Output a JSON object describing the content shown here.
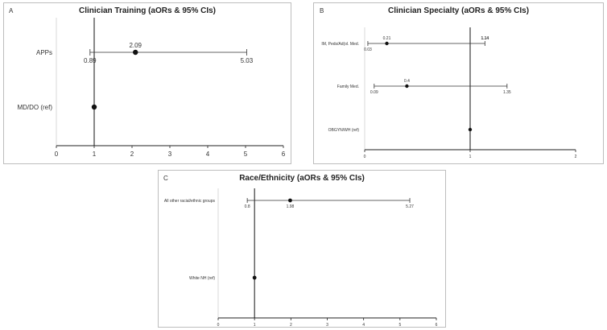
{
  "chart_data": [
    {
      "panel": "A",
      "type": "scatter",
      "title": "Clinician Training (aORs & 95% CIs)",
      "xlim": [
        0,
        6
      ],
      "xticks": [
        "0",
        "1",
        "2",
        "3",
        "4",
        "5",
        "6"
      ],
      "reference_line": 1,
      "categories": [
        "APPs",
        "MD/DO (ref)"
      ],
      "series": [
        {
          "category": "APPs",
          "aor": 2.09,
          "ci_low": 0.89,
          "ci_high": 5.03,
          "aor_label": "2.09",
          "low_label": "0.89",
          "high_label": "5.03"
        },
        {
          "category": "MD/DO (ref)",
          "aor": 1
        }
      ]
    },
    {
      "panel": "B",
      "type": "scatter",
      "title": "Clinician Specialty (aORs & 95% CIs)",
      "xlim": [
        0,
        2
      ],
      "xticks": [
        "0",
        "1",
        "2"
      ],
      "reference_line": 1,
      "categories": [
        "IM, Peds/Ad(ol. Med.",
        "Family Med.",
        "OBGYN/WH (ref)"
      ],
      "series": [
        {
          "category": "IM, Peds/Ad(ol. Med.",
          "aor": 0.21,
          "ci_low": 0.03,
          "ci_high": 1.14,
          "aor_label": "0.21",
          "low_label": "0.03",
          "high_label": "1.14"
        },
        {
          "category": "Family Med.",
          "aor": 0.4,
          "ci_low": 0.09,
          "ci_high": 1.35,
          "aor_label": "0.4",
          "low_label": "0.09",
          "high_label": "1.35"
        },
        {
          "category": "OBGYN/WH (ref)",
          "aor": 1
        }
      ]
    },
    {
      "panel": "C",
      "type": "scatter",
      "title": "Race/Ethnicity (aORs & 95% CIs)",
      "xlim": [
        0,
        6
      ],
      "xticks": [
        "0",
        "1",
        "2",
        "3",
        "4",
        "5",
        "6"
      ],
      "reference_line": 1,
      "categories": [
        "All other racial/ethnic groups",
        "White NH (ref)"
      ],
      "series": [
        {
          "category": "All other racial/ethnic groups",
          "aor": 1.98,
          "ci_low": 0.8,
          "ci_high": 5.27,
          "aor_label": "1.98",
          "low_label": "0.8",
          "high_label": "5.27"
        },
        {
          "category": "White NH (ref)",
          "aor": 1
        }
      ]
    }
  ]
}
